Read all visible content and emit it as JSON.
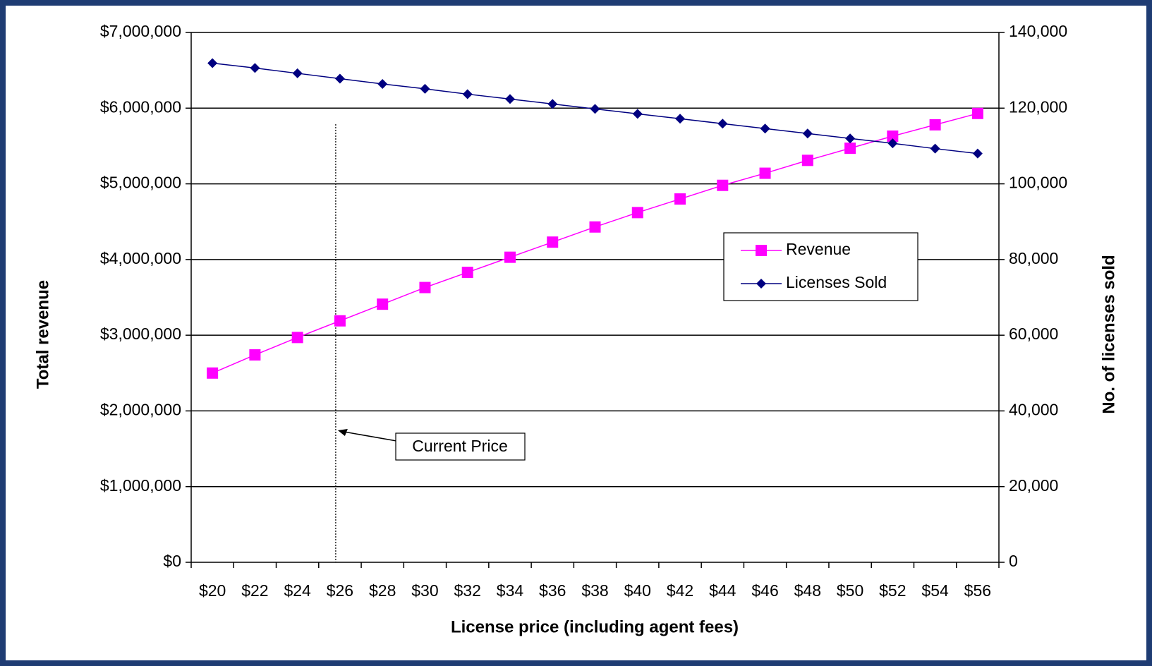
{
  "chart_data": {
    "type": "line",
    "xlabel": "License price (including agent fees)",
    "ylabel": "Total revenue",
    "y2label": "No. of licenses sold",
    "annotation": "Current Price",
    "categories": [
      "$20",
      "$22",
      "$24",
      "$26",
      "$28",
      "$30",
      "$32",
      "$34",
      "$36",
      "$38",
      "$40",
      "$42",
      "$44",
      "$46",
      "$48",
      "$50",
      "$52",
      "$54",
      "$56"
    ],
    "series": [
      {
        "name": "Revenue",
        "color": "#ff00ff",
        "marker": "square",
        "values": [
          2500000,
          2740000,
          2970000,
          3190000,
          3410000,
          3630000,
          3830000,
          4030000,
          4230000,
          4430000,
          4620000,
          4800000,
          4980000,
          5140000,
          5310000,
          5470000,
          5630000,
          5780000,
          5930000
        ]
      },
      {
        "name": "Licenses Sold",
        "color": "#000080",
        "marker": "diamond",
        "axis": "y2",
        "values": [
          131900,
          130600,
          129200,
          127800,
          126400,
          125100,
          123700,
          122400,
          121100,
          119800,
          118500,
          117200,
          115900,
          114600,
          113300,
          112000,
          110700,
          109300,
          108000
        ]
      }
    ],
    "ylim": [
      0,
      7000000
    ],
    "yticks": [
      {
        "value": 0,
        "label": "$0"
      },
      {
        "value": 1000000,
        "label": "$1,000,000"
      },
      {
        "value": 2000000,
        "label": "$2,000,000"
      },
      {
        "value": 3000000,
        "label": "$3,000,000"
      },
      {
        "value": 4000000,
        "label": "$4,000,000"
      },
      {
        "value": 5000000,
        "label": "$5,000,000"
      },
      {
        "value": 6000000,
        "label": "$6,000,000"
      },
      {
        "value": 7000000,
        "label": "$7,000,000"
      }
    ],
    "y2lim": [
      0,
      140000
    ],
    "y2ticks": [
      0,
      {
        "value": 20000,
        "label": "20,000"
      },
      {
        "value": 40000,
        "label": "40,000"
      },
      {
        "value": 60000,
        "label": "60,000"
      },
      {
        "value": 80000,
        "label": "80,000"
      },
      {
        "value": 100000,
        "label": "100,000"
      },
      {
        "value": 120000,
        "label": "120,000"
      },
      {
        "value": 140000,
        "label": "140,000"
      }
    ],
    "grid": true,
    "legend": "right"
  }
}
